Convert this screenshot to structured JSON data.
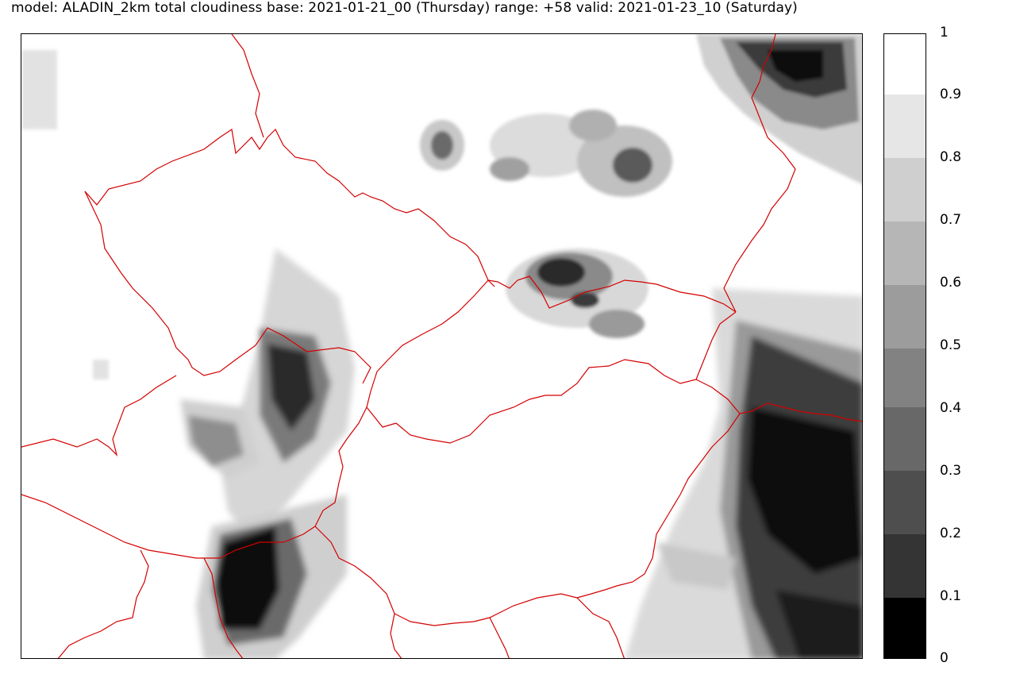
{
  "title": "model: ALADIN_2km total cloudiness  base:  2021-01-21_00 (Thursday) range: +58 valid: 2021-01-23_10 (Saturday)",
  "colorbar": {
    "labels": [
      "1",
      "0.9",
      "0.8",
      "0.7",
      "0.6",
      "0.5",
      "0.4",
      "0.3",
      "0.2",
      "0.1",
      "0"
    ],
    "colors": [
      "#ffffff",
      "#e6e6e6",
      "#cfcfcf",
      "#b6b6b6",
      "#9c9c9c",
      "#828282",
      "#686868",
      "#4e4e4e",
      "#343434",
      "#1a1a1a",
      "#000000"
    ]
  },
  "border_color": "#d40000"
}
